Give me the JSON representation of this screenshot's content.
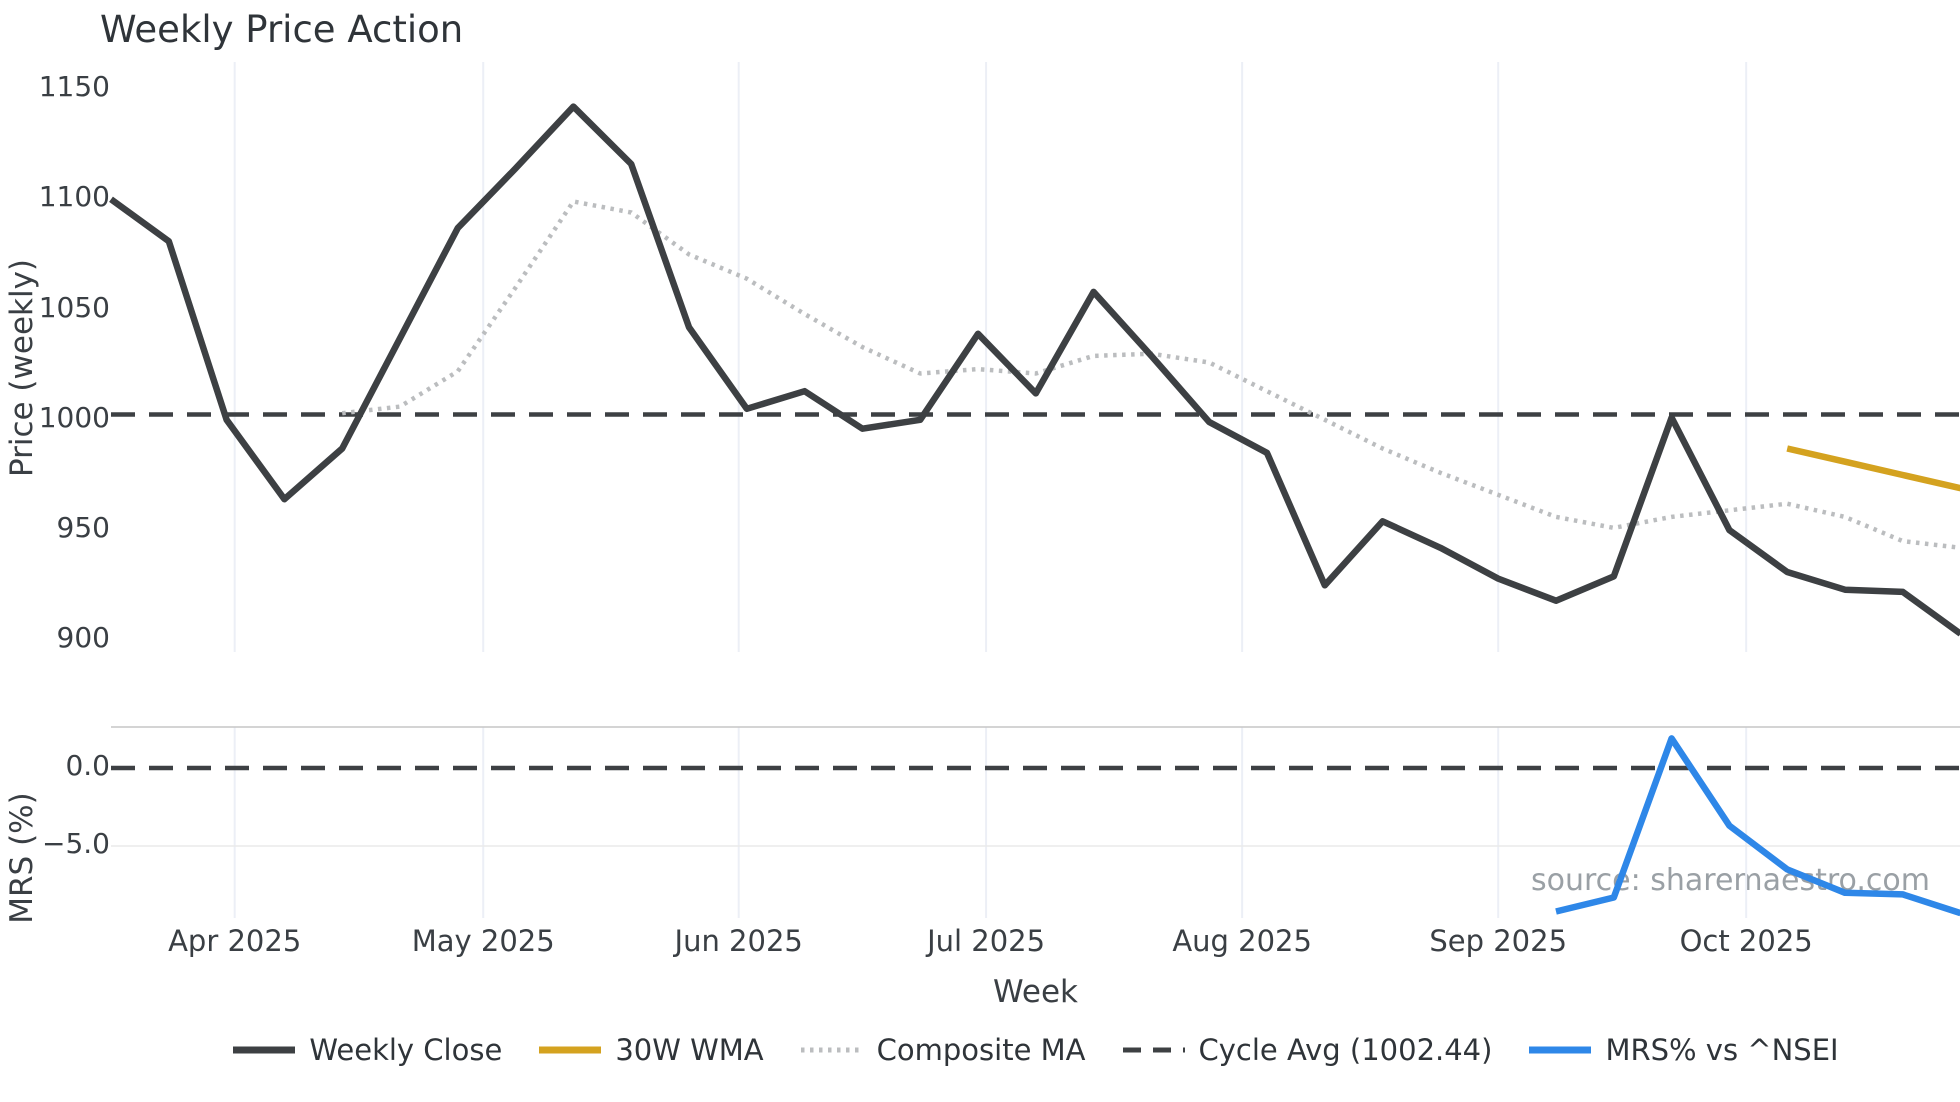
{
  "chart_data": {
    "type": "line",
    "title": "Weekly Price Action",
    "xlabel": "Week",
    "watermark": "source: sharemaestro.com",
    "layout_hints": {
      "grid": "vertical month gridlines, faint",
      "legend_position": "bottom center, no frame",
      "panels": "two stacked panels sharing x axis; right side of figure is cropped mid-data"
    },
    "x_axis": {
      "unit": "week index (weekly data, ~Mar 17 2025 start)",
      "tick_labels": [
        "Apr 2025",
        "May 2025",
        "Jun 2025",
        "Jul 2025",
        "Aug 2025",
        "Sep 2025",
        "Oct 2025"
      ],
      "tick_week_positions": [
        2.14,
        6.44,
        10.86,
        15.14,
        19.57,
        24.0,
        28.29
      ],
      "weeks_total": 33
    },
    "panels": [
      {
        "ylabel": "Price (weekly)",
        "ylim": [
          885,
          1160
        ],
        "ytick_labels": [
          "1150",
          "1100",
          "1050",
          "1000",
          "950",
          "900"
        ],
        "ytick_values": [
          1150,
          1100,
          1050,
          1000,
          950,
          900
        ],
        "series": [
          {
            "name": "Weekly Close",
            "style": "solid",
            "color": "#3d4043",
            "start_week": 0,
            "values": [
              1100,
              1081,
              1000,
              964,
              987,
              1037,
              1087,
              1114,
              1142,
              1116,
              1042,
              1005,
              1013,
              996,
              1000,
              1039,
              1012,
              1058,
              1029,
              999,
              985,
              925,
              954,
              942,
              928,
              918,
              929,
              1001,
              950,
              931,
              923,
              922,
              903
            ]
          },
          {
            "name": "Composite MA",
            "style": "dotted",
            "color": "#bbbdbf",
            "start_week": 4,
            "values": [
              1003,
              1006,
              1022,
              1060,
              1099,
              1094,
              1075,
              1064,
              1048,
              1033,
              1021,
              1023,
              1021,
              1029,
              1030,
              1026,
              1013,
              1000,
              987,
              976,
              966,
              956,
              951,
              956,
              959,
              962,
              956,
              945,
              942
            ]
          },
          {
            "name": "30W WMA",
            "style": "solid",
            "color": "#d4a21f",
            "start_week": 29,
            "values": [
              987,
              981,
              975,
              969
            ]
          },
          {
            "name": "Cycle Avg (1002.44)",
            "style": "dashed",
            "color": "#3d4043",
            "hline_value": 1002.44
          }
        ]
      },
      {
        "ylabel": "MRS (%)",
        "ylim": [
          -9.9,
          2.6
        ],
        "ytick_labels": [
          "0.0",
          "−5.0"
        ],
        "ytick_values": [
          0,
          -5
        ],
        "series": [
          {
            "name": "MRS% vs ^NSEI",
            "style": "solid",
            "color": "#2e87e8",
            "start_week": 25,
            "values": [
              -9.2,
              -8.3,
              1.9,
              -3.7,
              -6.5,
              -8.0,
              -8.1,
              -9.3
            ]
          },
          {
            "name": "zero-line",
            "style": "dashed",
            "color": "#3d4043",
            "hline_value": 0
          }
        ]
      }
    ],
    "legend": [
      {
        "label": "Weekly Close",
        "color": "#3d4043",
        "style": "solid"
      },
      {
        "label": "30W WMA",
        "color": "#d4a21f",
        "style": "solid"
      },
      {
        "label": "Composite MA",
        "color": "#bbbdbf",
        "style": "dotted"
      },
      {
        "label": "Cycle Avg (1002.44)",
        "color": "#3d4043",
        "style": "dashed"
      },
      {
        "label": "MRS% vs ^NSEI",
        "color": "#2e87e8",
        "style": "solid"
      }
    ],
    "style_colors": {
      "month_gridline": "#eceff6",
      "minor_hgridline": "#eaeaea",
      "mrs_top_border": "#c6c6c6",
      "tick_text": "#3a3f44",
      "title_text": "#2f3439",
      "watermark_text": "#9aa0a5"
    }
  }
}
